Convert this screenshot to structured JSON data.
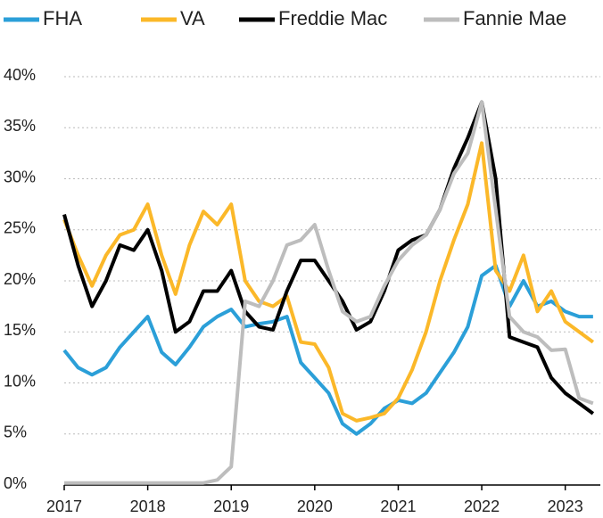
{
  "chart_data": {
    "type": "line",
    "x": [
      2017,
      2017.167,
      2017.333,
      2017.5,
      2017.667,
      2017.833,
      2018,
      2018.167,
      2018.333,
      2018.5,
      2018.667,
      2018.833,
      2019,
      2019.167,
      2019.333,
      2019.5,
      2019.667,
      2019.833,
      2020,
      2020.167,
      2020.333,
      2020.5,
      2020.667,
      2020.833,
      2021,
      2021.167,
      2021.333,
      2021.5,
      2021.667,
      2021.833,
      2022,
      2022.167,
      2022.333,
      2022.5,
      2022.667,
      2022.833,
      2023,
      2023.167,
      2023.333
    ],
    "series": [
      {
        "name": "FHA",
        "color": "#2b9fd8",
        "values": [
          13.2,
          11.5,
          10.8,
          11.5,
          13.5,
          15,
          16.5,
          13,
          11.8,
          13.5,
          15.5,
          16.5,
          17.2,
          15.5,
          15.8,
          16,
          16.5,
          12,
          10.5,
          9,
          6,
          5,
          6,
          7.5,
          8.3,
          8,
          9,
          11,
          13,
          15.5,
          20.5,
          21.5,
          17.5,
          20,
          17.5,
          18,
          17,
          16.5,
          16.5
        ]
      },
      {
        "name": "VA",
        "color": "#fbb829",
        "values": [
          26,
          22.5,
          19.5,
          22.5,
          24.5,
          25,
          27.5,
          22.5,
          18.7,
          23.5,
          26.8,
          25.5,
          27.5,
          20,
          18,
          17.5,
          18.5,
          14,
          13.8,
          11.5,
          7,
          6.3,
          6.6,
          7,
          8.5,
          11.3,
          15,
          20,
          24,
          27.5,
          33.5,
          21,
          19,
          22.5,
          17,
          19,
          16,
          15,
          14
        ]
      },
      {
        "name": "Freddie Mac",
        "color": "#000000",
        "values": [
          26.5,
          21.5,
          17.5,
          20,
          23.5,
          23,
          25,
          21,
          15,
          16,
          19,
          19,
          21,
          17,
          15.5,
          15.2,
          19,
          22,
          22,
          20,
          18,
          15.2,
          16,
          19,
          23,
          24,
          24.5,
          27,
          31,
          34,
          37.5,
          30,
          14.5,
          14,
          13.5,
          10.5,
          9,
          8,
          7
        ]
      },
      {
        "name": "Fannie Mae",
        "color": "#bdbdbd",
        "values": [
          0.2,
          0.2,
          0.2,
          0.2,
          0.2,
          0.2,
          0.2,
          0.2,
          0.2,
          0.2,
          0.2,
          0.5,
          1.8,
          18,
          17.5,
          20,
          23.5,
          24,
          25.5,
          21,
          17,
          16,
          16.5,
          19.5,
          22,
          23.5,
          24.5,
          27,
          30.5,
          32.5,
          37.5,
          27,
          16.5,
          15,
          14.5,
          13.2,
          13.3,
          8.5,
          8
        ]
      }
    ],
    "xlim": [
      2017,
      2023.42
    ],
    "xticks": [
      2017,
      2018,
      2019,
      2020,
      2021,
      2022,
      2023
    ],
    "ylim": [
      0,
      40
    ],
    "yticks": [
      {
        "value": 0,
        "label": "0%"
      },
      {
        "value": 5,
        "label": "5%"
      },
      {
        "value": 10,
        "label": "10%"
      },
      {
        "value": 15,
        "label": "15%"
      },
      {
        "value": 20,
        "label": "20%"
      },
      {
        "value": 25,
        "label": "25%"
      },
      {
        "value": 30,
        "label": "30%"
      },
      {
        "value": 35,
        "label": "35%"
      },
      {
        "value": 40,
        "label": "40%"
      }
    ],
    "grid": true
  }
}
